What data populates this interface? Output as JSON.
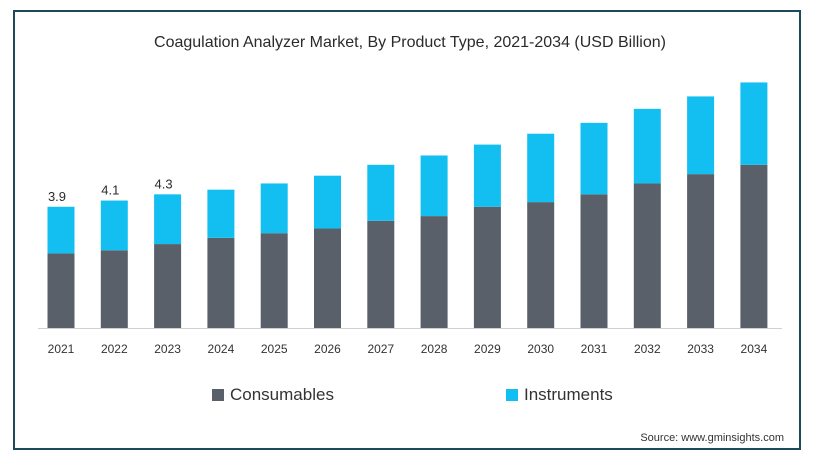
{
  "source": "Source: www.gminsights.com",
  "chart_data": {
    "type": "bar",
    "stacked": true,
    "title": "Coagulation Analyzer Market, By Product Type, 2021-2034 (USD Billion)",
    "categories": [
      "2021",
      "2022",
      "2023",
      "2024",
      "2025",
      "2026",
      "2027",
      "2028",
      "2029",
      "2030",
      "2031",
      "2032",
      "2033",
      "2034"
    ],
    "series": [
      {
        "name": "Consumables",
        "color": "#5a6069",
        "values": [
          2.4,
          2.5,
          2.7,
          2.9,
          3.05,
          3.2,
          3.45,
          3.6,
          3.9,
          4.05,
          4.3,
          4.65,
          4.95,
          5.25
        ]
      },
      {
        "name": "Instruments",
        "color": "#13bff0",
        "values": [
          1.5,
          1.6,
          1.6,
          1.55,
          1.6,
          1.7,
          1.8,
          1.95,
          2.0,
          2.2,
          2.3,
          2.4,
          2.5,
          2.65
        ]
      }
    ],
    "data_labels": [
      "3.9",
      "4.1",
      "4.3"
    ],
    "ylim": [
      0,
      8.3
    ],
    "xlabel": "",
    "ylabel": "",
    "grid": false,
    "legend_position": "bottom"
  }
}
